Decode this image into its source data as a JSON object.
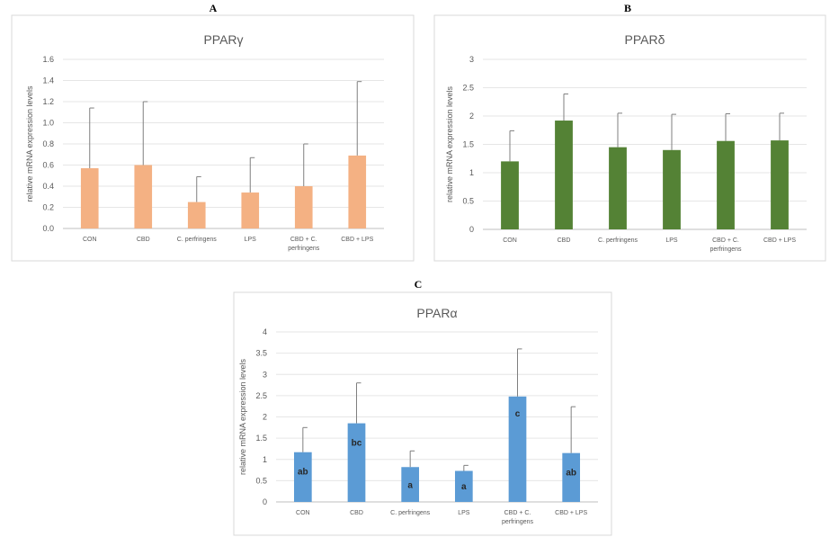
{
  "chart_data": [
    {
      "panel": "A",
      "type": "bar",
      "title": "PPARγ",
      "ylabel": "relative mRNA expression levels",
      "categories": [
        "CON",
        "CBD",
        "C. perfringens",
        "LPS",
        "CBD + C. perfringens",
        "CBD + LPS"
      ],
      "category_lines": [
        [
          "CON"
        ],
        [
          "CBD"
        ],
        [
          "C. perfringens"
        ],
        [
          "LPS"
        ],
        [
          "CBD + C.",
          "perfringens"
        ],
        [
          "CBD + LPS"
        ]
      ],
      "values": [
        0.57,
        0.6,
        0.25,
        0.34,
        0.4,
        0.69
      ],
      "error_upper": [
        1.14,
        1.2,
        0.49,
        0.67,
        0.8,
        1.39
      ],
      "ylim": [
        0,
        1.6
      ],
      "yticks": [
        "0.0",
        "0.2",
        "0.4",
        "0.6",
        "0.8",
        "1.0",
        "1.2",
        "1.4",
        "1.6"
      ],
      "grid": true,
      "color": "#f4b183"
    },
    {
      "panel": "B",
      "type": "bar",
      "title": "PPARδ",
      "ylabel": "relative mRNA expression levels",
      "categories": [
        "CON",
        "CBD",
        "C. perfringens",
        "LPS",
        "CBD + C. perfringens",
        "CBD + LPS"
      ],
      "category_lines": [
        [
          "CON"
        ],
        [
          "CBD"
        ],
        [
          "C. perfringens"
        ],
        [
          "LPS"
        ],
        [
          "CBD + C.",
          "perfringens"
        ],
        [
          "CBD + LPS"
        ]
      ],
      "values": [
        1.2,
        1.92,
        1.45,
        1.4,
        1.56,
        1.57
      ],
      "error_upper": [
        1.74,
        2.39,
        2.05,
        2.03,
        2.04,
        2.05
      ],
      "ylim": [
        0,
        3
      ],
      "yticks": [
        "0",
        "0.5",
        "1",
        "1.5",
        "2",
        "2.5",
        "3"
      ],
      "grid": true,
      "color": "#548235"
    },
    {
      "panel": "C",
      "type": "bar",
      "title": "PPARα",
      "ylabel": "relative mRNA expression levels",
      "categories": [
        "CON",
        "CBD",
        "C. perfringens",
        "LPS",
        "CBD + C. perfringens",
        "CBD + LPS"
      ],
      "category_lines": [
        [
          "CON"
        ],
        [
          "CBD"
        ],
        [
          "C. perfringens"
        ],
        [
          "LPS"
        ],
        [
          "CBD + C.",
          "perfringens"
        ],
        [
          "CBD + LPS"
        ]
      ],
      "values": [
        1.17,
        1.85,
        0.82,
        0.73,
        2.48,
        1.15
      ],
      "error_upper": [
        1.75,
        2.8,
        1.2,
        0.86,
        3.6,
        2.24
      ],
      "significance_labels": [
        "ab",
        "bc",
        "a",
        "a",
        "c",
        "ab"
      ],
      "ylim": [
        0,
        4
      ],
      "yticks": [
        "0",
        "0.5",
        "1",
        "1.5",
        "2",
        "2.5",
        "3",
        "3.5",
        "4"
      ],
      "grid": true,
      "color": "#5b9bd5"
    }
  ]
}
